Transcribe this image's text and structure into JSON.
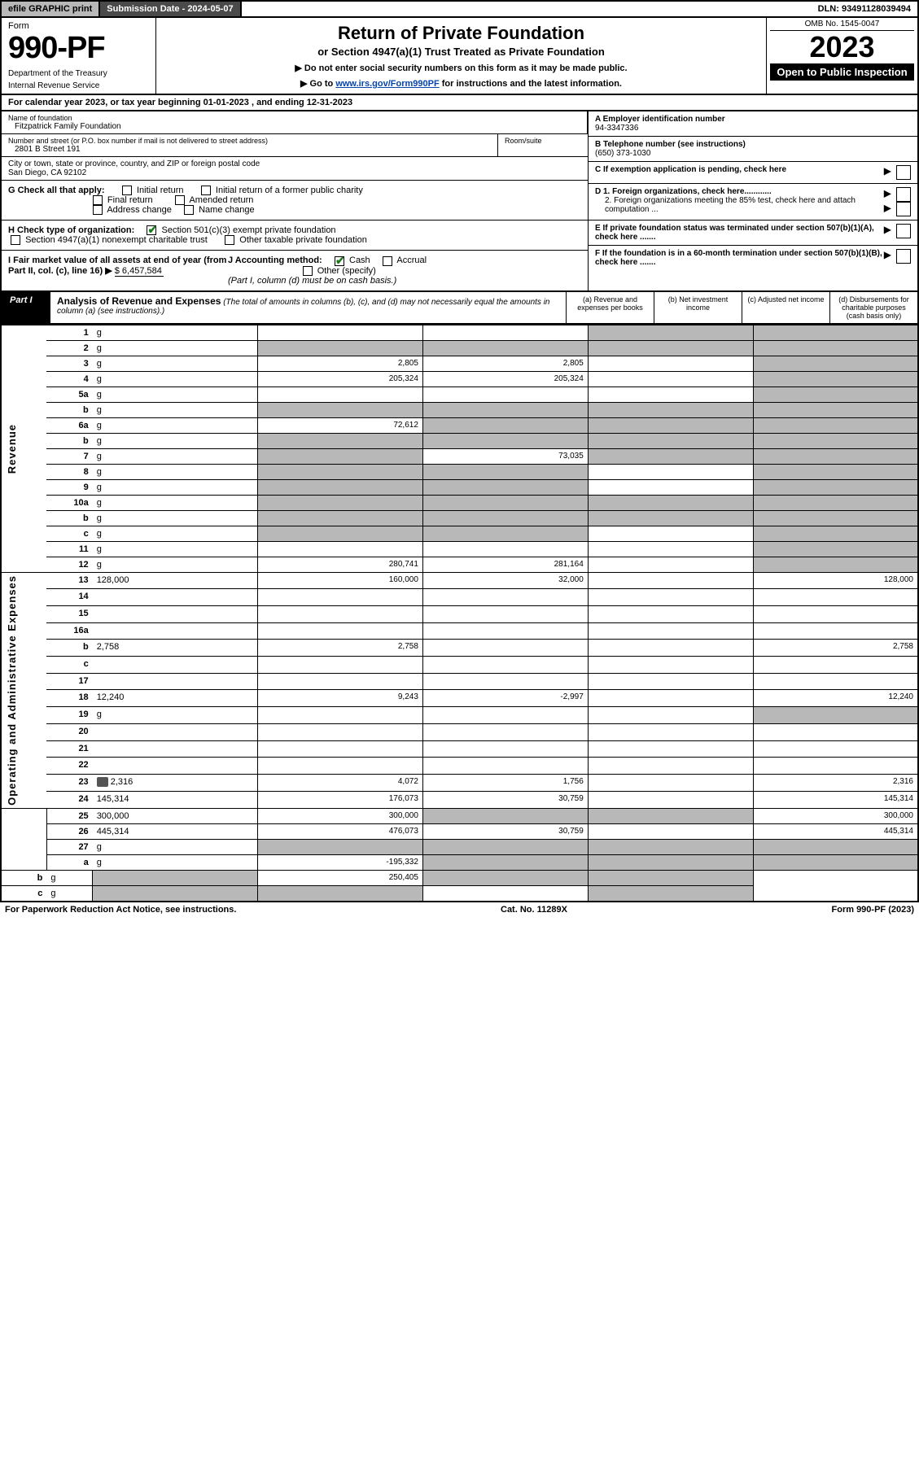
{
  "top": {
    "efile": "efile GRAPHIC print",
    "subdate": "Submission Date - 2024-05-07",
    "dln": "DLN: 93491128039494"
  },
  "header": {
    "form_word": "Form",
    "form_num": "990-PF",
    "dept1": "Department of the Treasury",
    "dept2": "Internal Revenue Service",
    "title": "Return of Private Foundation",
    "subtitle": "or Section 4947(a)(1) Trust Treated as Private Foundation",
    "instr1": "▶ Do not enter social security numbers on this form as it may be made public.",
    "instr2_pre": "▶ Go to ",
    "instr2_link": "www.irs.gov/Form990PF",
    "instr2_post": " for instructions and the latest information.",
    "omb": "OMB No. 1545-0047",
    "year": "2023",
    "open_pub": "Open to Public Inspection"
  },
  "calyear": "For calendar year 2023, or tax year beginning 01-01-2023              , and ending 12-31-2023",
  "info": {
    "name_lbl": "Name of foundation",
    "name": "Fitzpatrick Family Foundation",
    "addr_lbl": "Number and street (or P.O. box number if mail is not delivered to street address)",
    "addr": "2801 B Street 191",
    "room_lbl": "Room/suite",
    "city_lbl": "City or town, state or province, country, and ZIP or foreign postal code",
    "city": "San Diego, CA  92102",
    "a_lbl": "A Employer identification number",
    "a_val": "94-3347336",
    "b_lbl": "B Telephone number (see instructions)",
    "b_val": "(650) 373-1030",
    "c_lbl": "C If exemption application is pending, check here",
    "d1": "D 1. Foreign organizations, check here............",
    "d2": "2. Foreign organizations meeting the 85% test, check here and attach computation ...",
    "e": "E If private foundation status was terminated under section 507(b)(1)(A), check here .......",
    "f": "F If the foundation is in a 60-month termination under section 507(b)(1)(B), check here .......",
    "g_lbl": "G Check all that apply:",
    "g1": "Initial return",
    "g2": "Initial return of a former public charity",
    "g3": "Final return",
    "g4": "Amended return",
    "g5": "Address change",
    "g6": "Name change",
    "h_lbl": "H Check type of organization:",
    "h1": "Section 501(c)(3) exempt private foundation",
    "h2": "Section 4947(a)(1) nonexempt charitable trust",
    "h3": "Other taxable private foundation",
    "i_lbl": "I Fair market value of all assets at end of year (from Part II, col. (c), line 16) ▶",
    "i_val": "$  6,457,584",
    "j_lbl": "J Accounting method:",
    "j1": "Cash",
    "j2": "Accrual",
    "j3": "Other (specify)",
    "j_note": "(Part I, column (d) must be on cash basis.)"
  },
  "part1": {
    "label": "Part I",
    "title": "Analysis of Revenue and Expenses",
    "sub": "(The total of amounts in columns (b), (c), and (d) may not necessarily equal the amounts in column (a) (see instructions).)",
    "col_a": "(a)  Revenue and expenses per books",
    "col_b": "(b)  Net investment income",
    "col_c": "(c)  Adjusted net income",
    "col_d": "(d)  Disbursements for charitable purposes (cash basis only)",
    "vlabel_rev": "Revenue",
    "vlabel_exp": "Operating and Administrative Expenses"
  },
  "rows": [
    {
      "n": "1",
      "d": "g",
      "a": "",
      "b": "",
      "c": "g"
    },
    {
      "n": "2",
      "d": "g",
      "dots": true,
      "a": "g",
      "b": "g",
      "c": "g"
    },
    {
      "n": "3",
      "d": "g",
      "a": "2,805",
      "b": "2,805",
      "c": ""
    },
    {
      "n": "4",
      "d": "g",
      "dots": true,
      "a": "205,324",
      "b": "205,324",
      "c": ""
    },
    {
      "n": "5a",
      "d": "g",
      "dots": true,
      "a": "",
      "b": "",
      "c": ""
    },
    {
      "n": "b",
      "d": "g",
      "a": "g",
      "b": "g",
      "c": "g"
    },
    {
      "n": "6a",
      "d": "g",
      "a": "72,612",
      "b": "g",
      "c": "g"
    },
    {
      "n": "b",
      "d": "g",
      "a": "g",
      "b": "g",
      "c": "g"
    },
    {
      "n": "7",
      "d": "g",
      "dots": true,
      "a": "g",
      "b": "73,035",
      "c": "g"
    },
    {
      "n": "8",
      "d": "g",
      "dots": true,
      "a": "g",
      "b": "g",
      "c": ""
    },
    {
      "n": "9",
      "d": "g",
      "dots": true,
      "a": "g",
      "b": "g",
      "c": ""
    },
    {
      "n": "10a",
      "d": "g",
      "a": "g",
      "b": "g",
      "c": "g"
    },
    {
      "n": "b",
      "d": "g",
      "dots": true,
      "a": "g",
      "b": "g",
      "c": "g"
    },
    {
      "n": "c",
      "d": "g",
      "dots": true,
      "a": "g",
      "b": "g",
      "c": ""
    },
    {
      "n": "11",
      "d": "g",
      "dots": true,
      "a": "",
      "b": "",
      "c": ""
    },
    {
      "n": "12",
      "d": "g",
      "dots": true,
      "a": "280,741",
      "b": "281,164",
      "c": ""
    },
    {
      "n": "13",
      "d": "128,000",
      "a": "160,000",
      "b": "32,000",
      "c": ""
    },
    {
      "n": "14",
      "d": "",
      "dots": true,
      "a": "",
      "b": "",
      "c": ""
    },
    {
      "n": "15",
      "d": "",
      "dots": true,
      "a": "",
      "b": "",
      "c": ""
    },
    {
      "n": "16a",
      "d": "",
      "dots": true,
      "a": "",
      "b": "",
      "c": ""
    },
    {
      "n": "b",
      "d": "2,758",
      "dots": true,
      "a": "2,758",
      "b": "",
      "c": ""
    },
    {
      "n": "c",
      "d": "",
      "dots": true,
      "a": "",
      "b": "",
      "c": ""
    },
    {
      "n": "17",
      "d": "",
      "dots": true,
      "a": "",
      "b": "",
      "c": ""
    },
    {
      "n": "18",
      "d": "12,240",
      "dots": true,
      "a": "9,243",
      "b": "-2,997",
      "c": ""
    },
    {
      "n": "19",
      "d": "g",
      "dots": true,
      "a": "",
      "b": "",
      "c": ""
    },
    {
      "n": "20",
      "d": "",
      "dots": true,
      "a": "",
      "b": "",
      "c": ""
    },
    {
      "n": "21",
      "d": "",
      "dots": true,
      "a": "",
      "b": "",
      "c": ""
    },
    {
      "n": "22",
      "d": "",
      "dots": true,
      "a": "",
      "b": "",
      "c": ""
    },
    {
      "n": "23",
      "d": "2,316",
      "dots": true,
      "icon": true,
      "a": "4,072",
      "b": "1,756",
      "c": ""
    },
    {
      "n": "24",
      "d": "145,314",
      "dots": true,
      "a": "176,073",
      "b": "30,759",
      "c": ""
    },
    {
      "n": "25",
      "d": "300,000",
      "dots": true,
      "a": "300,000",
      "b": "g",
      "c": "g"
    },
    {
      "n": "26",
      "d": "445,314",
      "a": "476,073",
      "b": "30,759",
      "c": ""
    },
    {
      "n": "27",
      "d": "g",
      "a": "g",
      "b": "g",
      "c": "g"
    },
    {
      "n": "a",
      "d": "g",
      "a": "-195,332",
      "b": "g",
      "c": "g"
    },
    {
      "n": "b",
      "d": "g",
      "a": "g",
      "b": "250,405",
      "c": "g"
    },
    {
      "n": "c",
      "d": "g",
      "dots": true,
      "a": "g",
      "b": "g",
      "c": ""
    }
  ],
  "footer": {
    "left": "For Paperwork Reduction Act Notice, see instructions.",
    "mid": "Cat. No. 11289X",
    "right": "Form 990-PF (2023)"
  }
}
